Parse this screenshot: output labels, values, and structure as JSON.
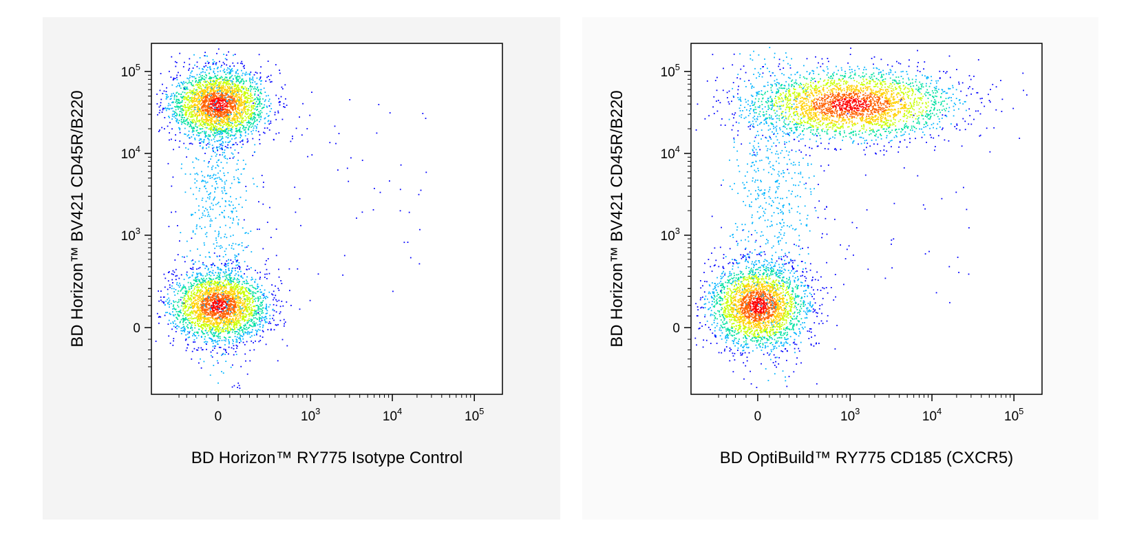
{
  "chart_data": [
    {
      "type": "scatter",
      "subtype": "flow-cytometry-density-dot-plot",
      "title": "",
      "xlabel": "BD Horizon™ RY775 Isotype Control",
      "ylabel": "BD Horizon™ BV421 CD45R/B220",
      "x_scale": "biexponential",
      "y_scale": "biexponential",
      "x_ticks": [
        {
          "value": 0,
          "base": "0",
          "exp": ""
        },
        {
          "value": 1000,
          "base": "10",
          "exp": "3"
        },
        {
          "value": 10000,
          "base": "10",
          "exp": "4"
        },
        {
          "value": 100000,
          "base": "10",
          "exp": "5"
        }
      ],
      "y_ticks": [
        {
          "value": 0,
          "base": "0",
          "exp": ""
        },
        {
          "value": 1000,
          "base": "10",
          "exp": "3"
        },
        {
          "value": 10000,
          "base": "10",
          "exp": "4"
        },
        {
          "value": 100000,
          "base": "10",
          "exp": "5"
        }
      ],
      "populations": [
        {
          "name": "",
          "x_center": 0,
          "y_center": 40000,
          "count": 2600,
          "sx": 0.07,
          "sy": 0.05
        },
        {
          "name": "",
          "x_center": 0,
          "y_center": 100,
          "count": 2600,
          "sx": 0.07,
          "sy": 0.05
        },
        {
          "name": "",
          "x_center": 0,
          "y_center": 3000,
          "count": 700,
          "sx": 0.05,
          "sy": 0.25
        }
      ],
      "colormap": [
        "#0000ff",
        "#00b4ff",
        "#00e0a0",
        "#c8ff00",
        "#ffd000",
        "#ff6000",
        "#ff0000"
      ],
      "grid": false
    },
    {
      "type": "scatter",
      "subtype": "flow-cytometry-density-dot-plot",
      "title": "",
      "xlabel": "BD OptiBuild™ RY775 CD185 (CXCR5)",
      "ylabel": "BD Horizon™ BV421 CD45R/B220",
      "x_scale": "biexponential",
      "y_scale": "biexponential",
      "x_ticks": [
        {
          "value": 0,
          "base": "0",
          "exp": ""
        },
        {
          "value": 1000,
          "base": "10",
          "exp": "3"
        },
        {
          "value": 10000,
          "base": "10",
          "exp": "4"
        },
        {
          "value": 100000,
          "base": "10",
          "exp": "5"
        }
      ],
      "y_ticks": [
        {
          "value": 0,
          "base": "0",
          "exp": ""
        },
        {
          "value": 1000,
          "base": "10",
          "exp": "3"
        },
        {
          "value": 10000,
          "base": "10",
          "exp": "4"
        },
        {
          "value": 100000,
          "base": "10",
          "exp": "5"
        }
      ],
      "populations": [
        {
          "name": "",
          "x_center": 1000,
          "y_center": 40000,
          "count": 2800,
          "sx": 0.15,
          "sy": 0.05
        },
        {
          "name": "",
          "x_center": 0,
          "y_center": 100,
          "count": 2600,
          "sx": 0.07,
          "sy": 0.06
        },
        {
          "name": "",
          "x_center": 50,
          "y_center": 3000,
          "count": 700,
          "sx": 0.06,
          "sy": 0.25
        }
      ],
      "colormap": [
        "#0000ff",
        "#00b4ff",
        "#00e0a0",
        "#c8ff00",
        "#ffd000",
        "#ff6000",
        "#ff0000"
      ],
      "grid": false
    }
  ]
}
